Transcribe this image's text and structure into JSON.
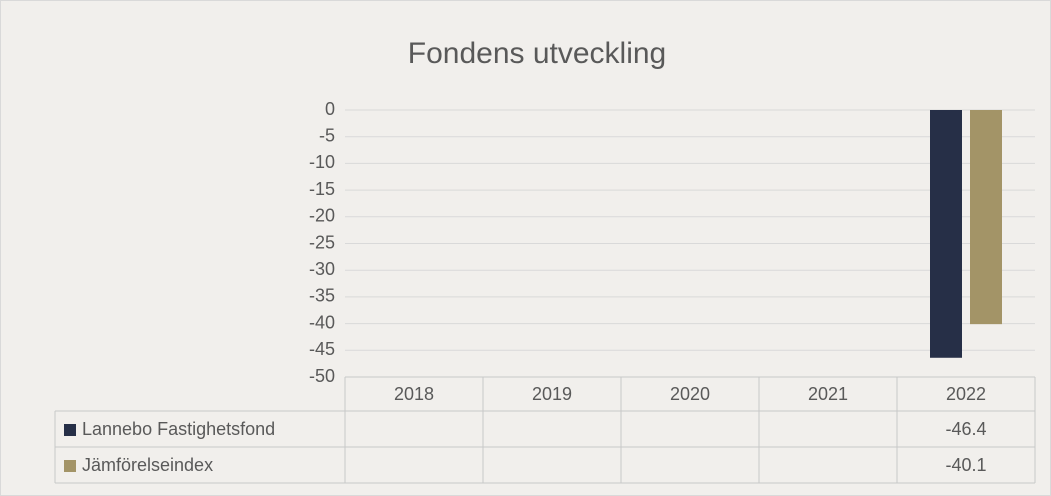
{
  "chart_data": {
    "type": "bar",
    "title": "Fondens utveckling",
    "categories": [
      "2018",
      "2019",
      "2020",
      "2021",
      "2022"
    ],
    "series": [
      {
        "name": "Lannebo Fastighetsfond",
        "color": "#262f47",
        "values": [
          null,
          null,
          null,
          null,
          -46.4
        ]
      },
      {
        "name": "Jämförelseindex",
        "color": "#a39467",
        "values": [
          null,
          null,
          null,
          null,
          -40.1
        ]
      }
    ],
    "ylim": [
      0,
      -50
    ],
    "yticks": [
      0,
      -5,
      -10,
      -15,
      -20,
      -25,
      -30,
      -35,
      -40,
      -45,
      -50
    ],
    "grid": true,
    "data_table": true
  }
}
